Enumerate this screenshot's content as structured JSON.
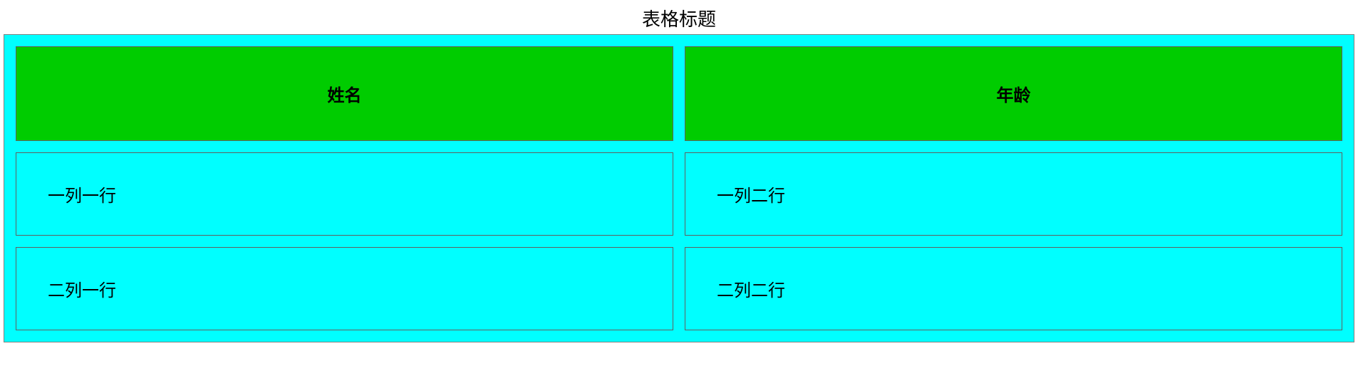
{
  "table": {
    "type": "table",
    "caption": "表格标题",
    "columns": [
      "姓名",
      "年龄"
    ],
    "rows": [
      [
        "一列一行",
        "一列二行"
      ],
      [
        "二列一行",
        "二列二行"
      ]
    ],
    "styling": {
      "table_background": "#00ffff",
      "table_border_color": "#808080",
      "header_background": "#00cc00",
      "header_text_color": "#000000",
      "header_font_size": 24,
      "header_font_weight": "bold",
      "header_text_align": "center",
      "cell_background": "#00ffff",
      "cell_text_color": "#000000",
      "cell_font_size": 24,
      "cell_text_align": "left",
      "cell_border_color": "#606060",
      "caption_font_size": 26,
      "caption_text_align": "center",
      "border_spacing": 16,
      "column_widths": [
        "50%",
        "50%"
      ]
    }
  }
}
